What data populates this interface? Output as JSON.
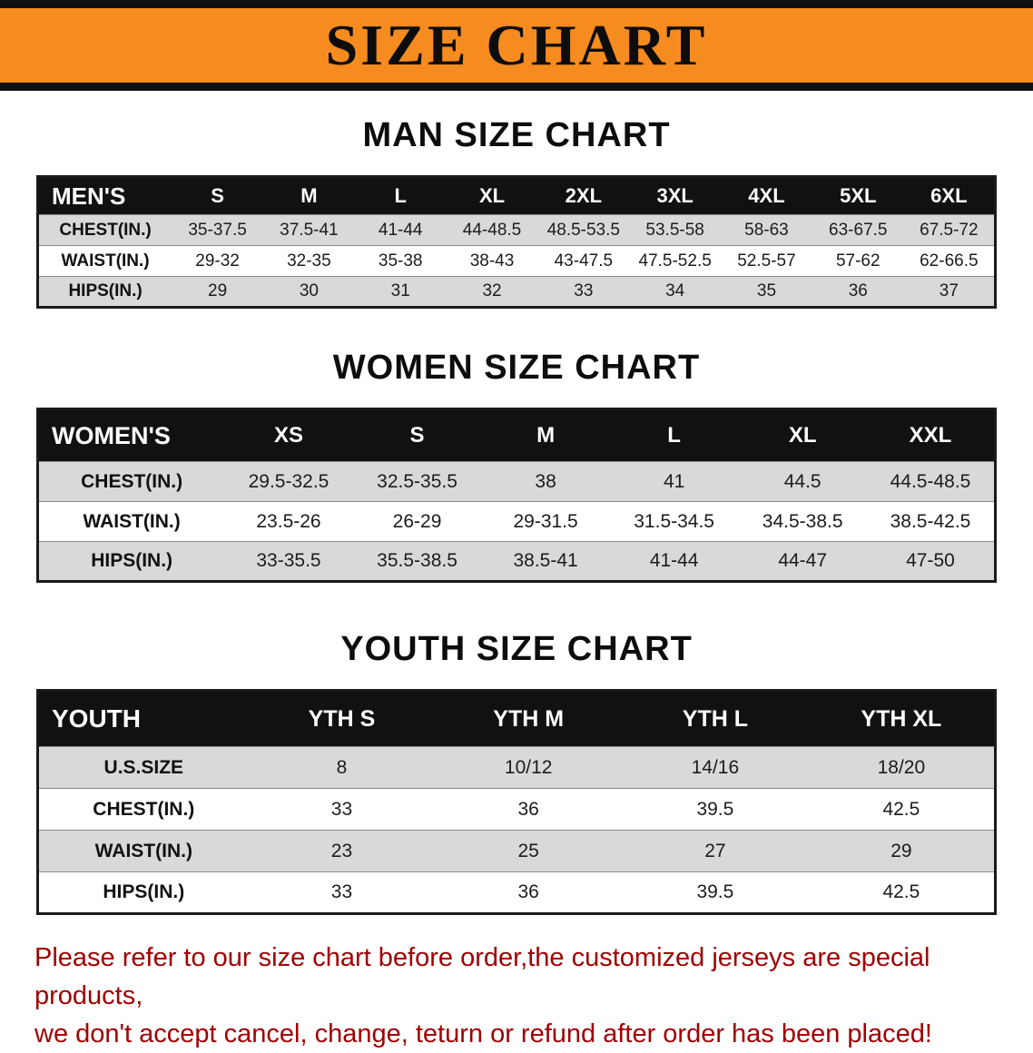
{
  "banner": {
    "title": "SIZE CHART",
    "bg_color": "#f68b1f",
    "border_color": "#111111"
  },
  "sections": [
    {
      "title": "MAN SIZE CHART",
      "table": {
        "header": [
          "MEN'S",
          "S",
          "M",
          "L",
          "XL",
          "2XL",
          "3XL",
          "4XL",
          "5XL",
          "6XL"
        ],
        "rows": [
          [
            "CHEST(IN.)",
            "35-37.5",
            "37.5-41",
            "41-44",
            "44-48.5",
            "48.5-53.5",
            "53.5-58",
            "58-63",
            "63-67.5",
            "67.5-72"
          ],
          [
            "WAIST(IN.)",
            "29-32",
            "32-35",
            "35-38",
            "38-43",
            "43-47.5",
            "47.5-52.5",
            "52.5-57",
            "57-62",
            "62-66.5"
          ],
          [
            "HIPS(IN.)",
            "29",
            "30",
            "31",
            "32",
            "33",
            "34",
            "35",
            "36",
            "37"
          ]
        ]
      }
    },
    {
      "title": "WOMEN SIZE CHART",
      "table": {
        "header": [
          "WOMEN'S",
          "XS",
          "S",
          "M",
          "L",
          "XL",
          "XXL"
        ],
        "rows": [
          [
            "CHEST(IN.)",
            "29.5-32.5",
            "32.5-35.5",
            "38",
            "41",
            "44.5",
            "44.5-48.5"
          ],
          [
            "WAIST(IN.)",
            "23.5-26",
            "26-29",
            "29-31.5",
            "31.5-34.5",
            "34.5-38.5",
            "38.5-42.5"
          ],
          [
            "HIPS(IN.)",
            "33-35.5",
            "35.5-38.5",
            "38.5-41",
            "41-44",
            "44-47",
            "47-50"
          ]
        ]
      }
    },
    {
      "title": "YOUTH SIZE CHART",
      "table": {
        "header": [
          "YOUTH",
          "YTH S",
          "YTH M",
          "YTH L",
          "YTH XL"
        ],
        "rows": [
          [
            "U.S.SIZE",
            "8",
            "10/12",
            "14/16",
            "18/20"
          ],
          [
            "CHEST(IN.)",
            "33",
            "36",
            "39.5",
            "42.5"
          ],
          [
            "WAIST(IN.)",
            "23",
            "25",
            "27",
            "29"
          ],
          [
            "HIPS(IN.)",
            "33",
            "36",
            "39.5",
            "42.5"
          ]
        ]
      }
    }
  ],
  "footer": {
    "line1": "Please refer to our size chart before order,the customized jerseys are special products,",
    "line2": "we don't accept cancel, change, teturn or refund after order has been placed!",
    "text_color": "#a00000"
  }
}
